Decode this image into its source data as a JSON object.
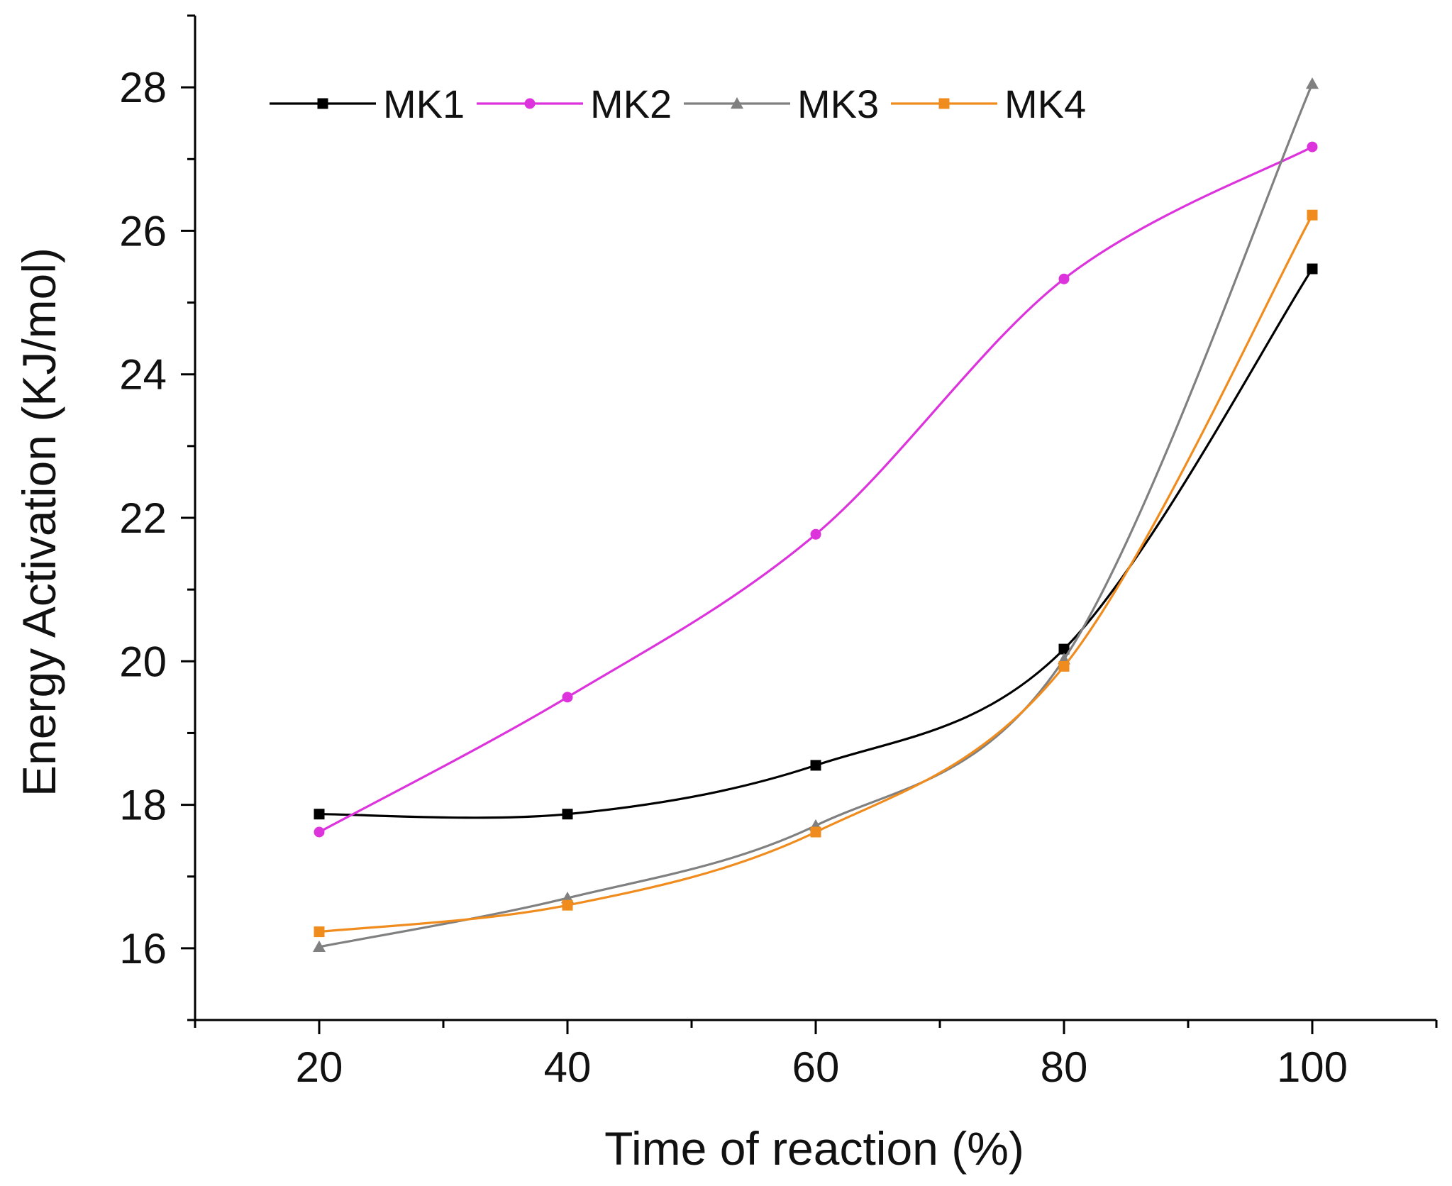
{
  "chart_data": {
    "type": "line",
    "xlabel": "Time of reaction (%)",
    "ylabel": "Energy Activation (KJ/mol)",
    "x": [
      20,
      40,
      60,
      80,
      100
    ],
    "xlim": [
      10,
      110
    ],
    "ylim": [
      15,
      29
    ],
    "xticks": [
      20,
      40,
      60,
      80,
      100
    ],
    "yticks": [
      16,
      18,
      20,
      22,
      24,
      26,
      28
    ],
    "grid": false,
    "legend_position": "top",
    "smoothed_lines": true,
    "series": [
      {
        "name": "MK1",
        "values": [
          17.87,
          17.87,
          18.55,
          20.17,
          25.47
        ],
        "color": "#000000",
        "marker": "square"
      },
      {
        "name": "MK2",
        "values": [
          17.62,
          19.5,
          21.77,
          25.33,
          27.17
        ],
        "color": "#dd33dd",
        "marker": "circle"
      },
      {
        "name": "MK3",
        "values": [
          16.02,
          16.7,
          17.71,
          20.03,
          28.05
        ],
        "color": "#808080",
        "marker": "triangle"
      },
      {
        "name": "MK4",
        "values": [
          16.23,
          16.6,
          17.62,
          19.93,
          26.22
        ],
        "color": "#f08c1e",
        "marker": "square"
      }
    ]
  }
}
